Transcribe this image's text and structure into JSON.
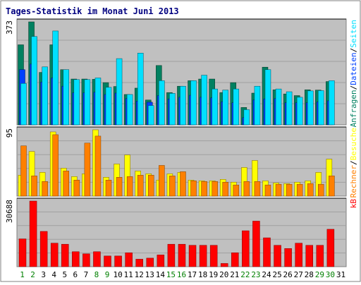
{
  "chart_data": {
    "type": "bar",
    "title": "Tages-Statistik im Monat Juni 2013",
    "categories": [
      "1",
      "2",
      "3",
      "4",
      "5",
      "6",
      "7",
      "8",
      "9",
      "10",
      "11",
      "12",
      "13",
      "14",
      "15",
      "16",
      "17",
      "18",
      "19",
      "20",
      "21",
      "22",
      "23",
      "24",
      "25",
      "26",
      "27",
      "28",
      "29",
      "30",
      "31"
    ],
    "weekend_days": [
      1,
      2,
      8,
      9,
      15,
      16,
      22,
      23,
      29,
      30
    ],
    "colors": {
      "background": "#c0c0c0",
      "title": "#000080",
      "weekday_label": "#000000",
      "weekend_label": "#008000",
      "anfragen": "#008060",
      "dateien": "#0040ff",
      "seiten": "#00e0ff",
      "besuche": "#ffff00",
      "rechner": "#ff8000",
      "kb": "#ff0000",
      "slash": "#000000"
    },
    "panels": [
      {
        "id": "top",
        "max_label": "373",
        "ymax": 373,
        "legend": [
          {
            "label": "Anfragen",
            "color": "#008060"
          },
          {
            "label": "/",
            "color": "#000000"
          },
          {
            "label": "Dateien",
            "color": "#0040ff"
          },
          {
            "label": "/",
            "color": "#000000"
          },
          {
            "label": "Seiten",
            "color": "#00e0ff"
          }
        ],
        "series": [
          {
            "name": "Anfragen",
            "values": [
              290,
              373,
              190,
              290,
              200,
              166,
              166,
              165,
              153,
              139,
              110,
              133,
              90,
              215,
              117,
              140,
              160,
              166,
              166,
              117,
              153,
              63,
              115,
              209,
              127,
              112,
              106,
              127,
              126,
              157
            ]
          },
          {
            "name": "Dateien",
            "values": [
              200,
              220,
              155,
              170,
              140,
              116,
              116,
              118,
              110,
              115,
              95,
              86,
              82,
              106,
              94,
              100,
              107,
              100,
              98,
              84,
              80,
              26,
              90,
              94,
              95,
              80,
              80,
              80,
              83,
              87
            ]
          },
          {
            "name": "Seiten",
            "values": [
              150,
              320,
              210,
              340,
              200,
              164,
              164,
              170,
              136,
              240,
              110,
              260,
              70,
              160,
              114,
              140,
              160,
              180,
              130,
              126,
              130,
              55,
              140,
              200,
              130,
              120,
              100,
              123,
              124,
              160
            ]
          }
        ]
      },
      {
        "id": "middle",
        "max_label": "95",
        "ymax": 95,
        "legend": [
          {
            "label": "Rechner",
            "color": "#ff8000"
          },
          {
            "label": "/",
            "color": "#000000"
          },
          {
            "label": "Besuche",
            "color": "#ffff00"
          }
        ],
        "series": [
          {
            "name": "Besuche",
            "values": [
              30,
              64,
              34,
              92,
              40,
              28,
              32,
              95,
              27,
              46,
              59,
              36,
              32,
              23,
              32,
              34,
              23,
              22,
              22,
              24,
              20,
              41,
              51,
              22,
              19,
              18,
              20,
              22,
              34,
              53
            ]
          },
          {
            "name": "Rechner",
            "values": [
              72,
              29,
              21,
              88,
              36,
              23,
              76,
              86,
              23,
              27,
              28,
              30,
              30,
              44,
              29,
              35,
              22,
              21,
              21,
              20,
              16,
              21,
              21,
              16,
              17,
              17,
              17,
              18,
              17,
              29
            ]
          }
        ]
      },
      {
        "id": "bottom",
        "max_label": "30688",
        "ymax": 30688,
        "legend": [
          {
            "label": "kB",
            "color": "#ff0000"
          }
        ],
        "series": [
          {
            "name": "kB",
            "values": [
              13000,
              30688,
              16500,
              11000,
              10500,
              7000,
              6000,
              7000,
              5000,
              5000,
              6500,
              3500,
              4000,
              5500,
              10500,
              10500,
              10000,
              10000,
              10000,
              1500,
              6500,
              16800,
              21300,
              13500,
              10000,
              8500,
              11000,
              10000,
              10000,
              17500
            ]
          }
        ]
      }
    ]
  }
}
